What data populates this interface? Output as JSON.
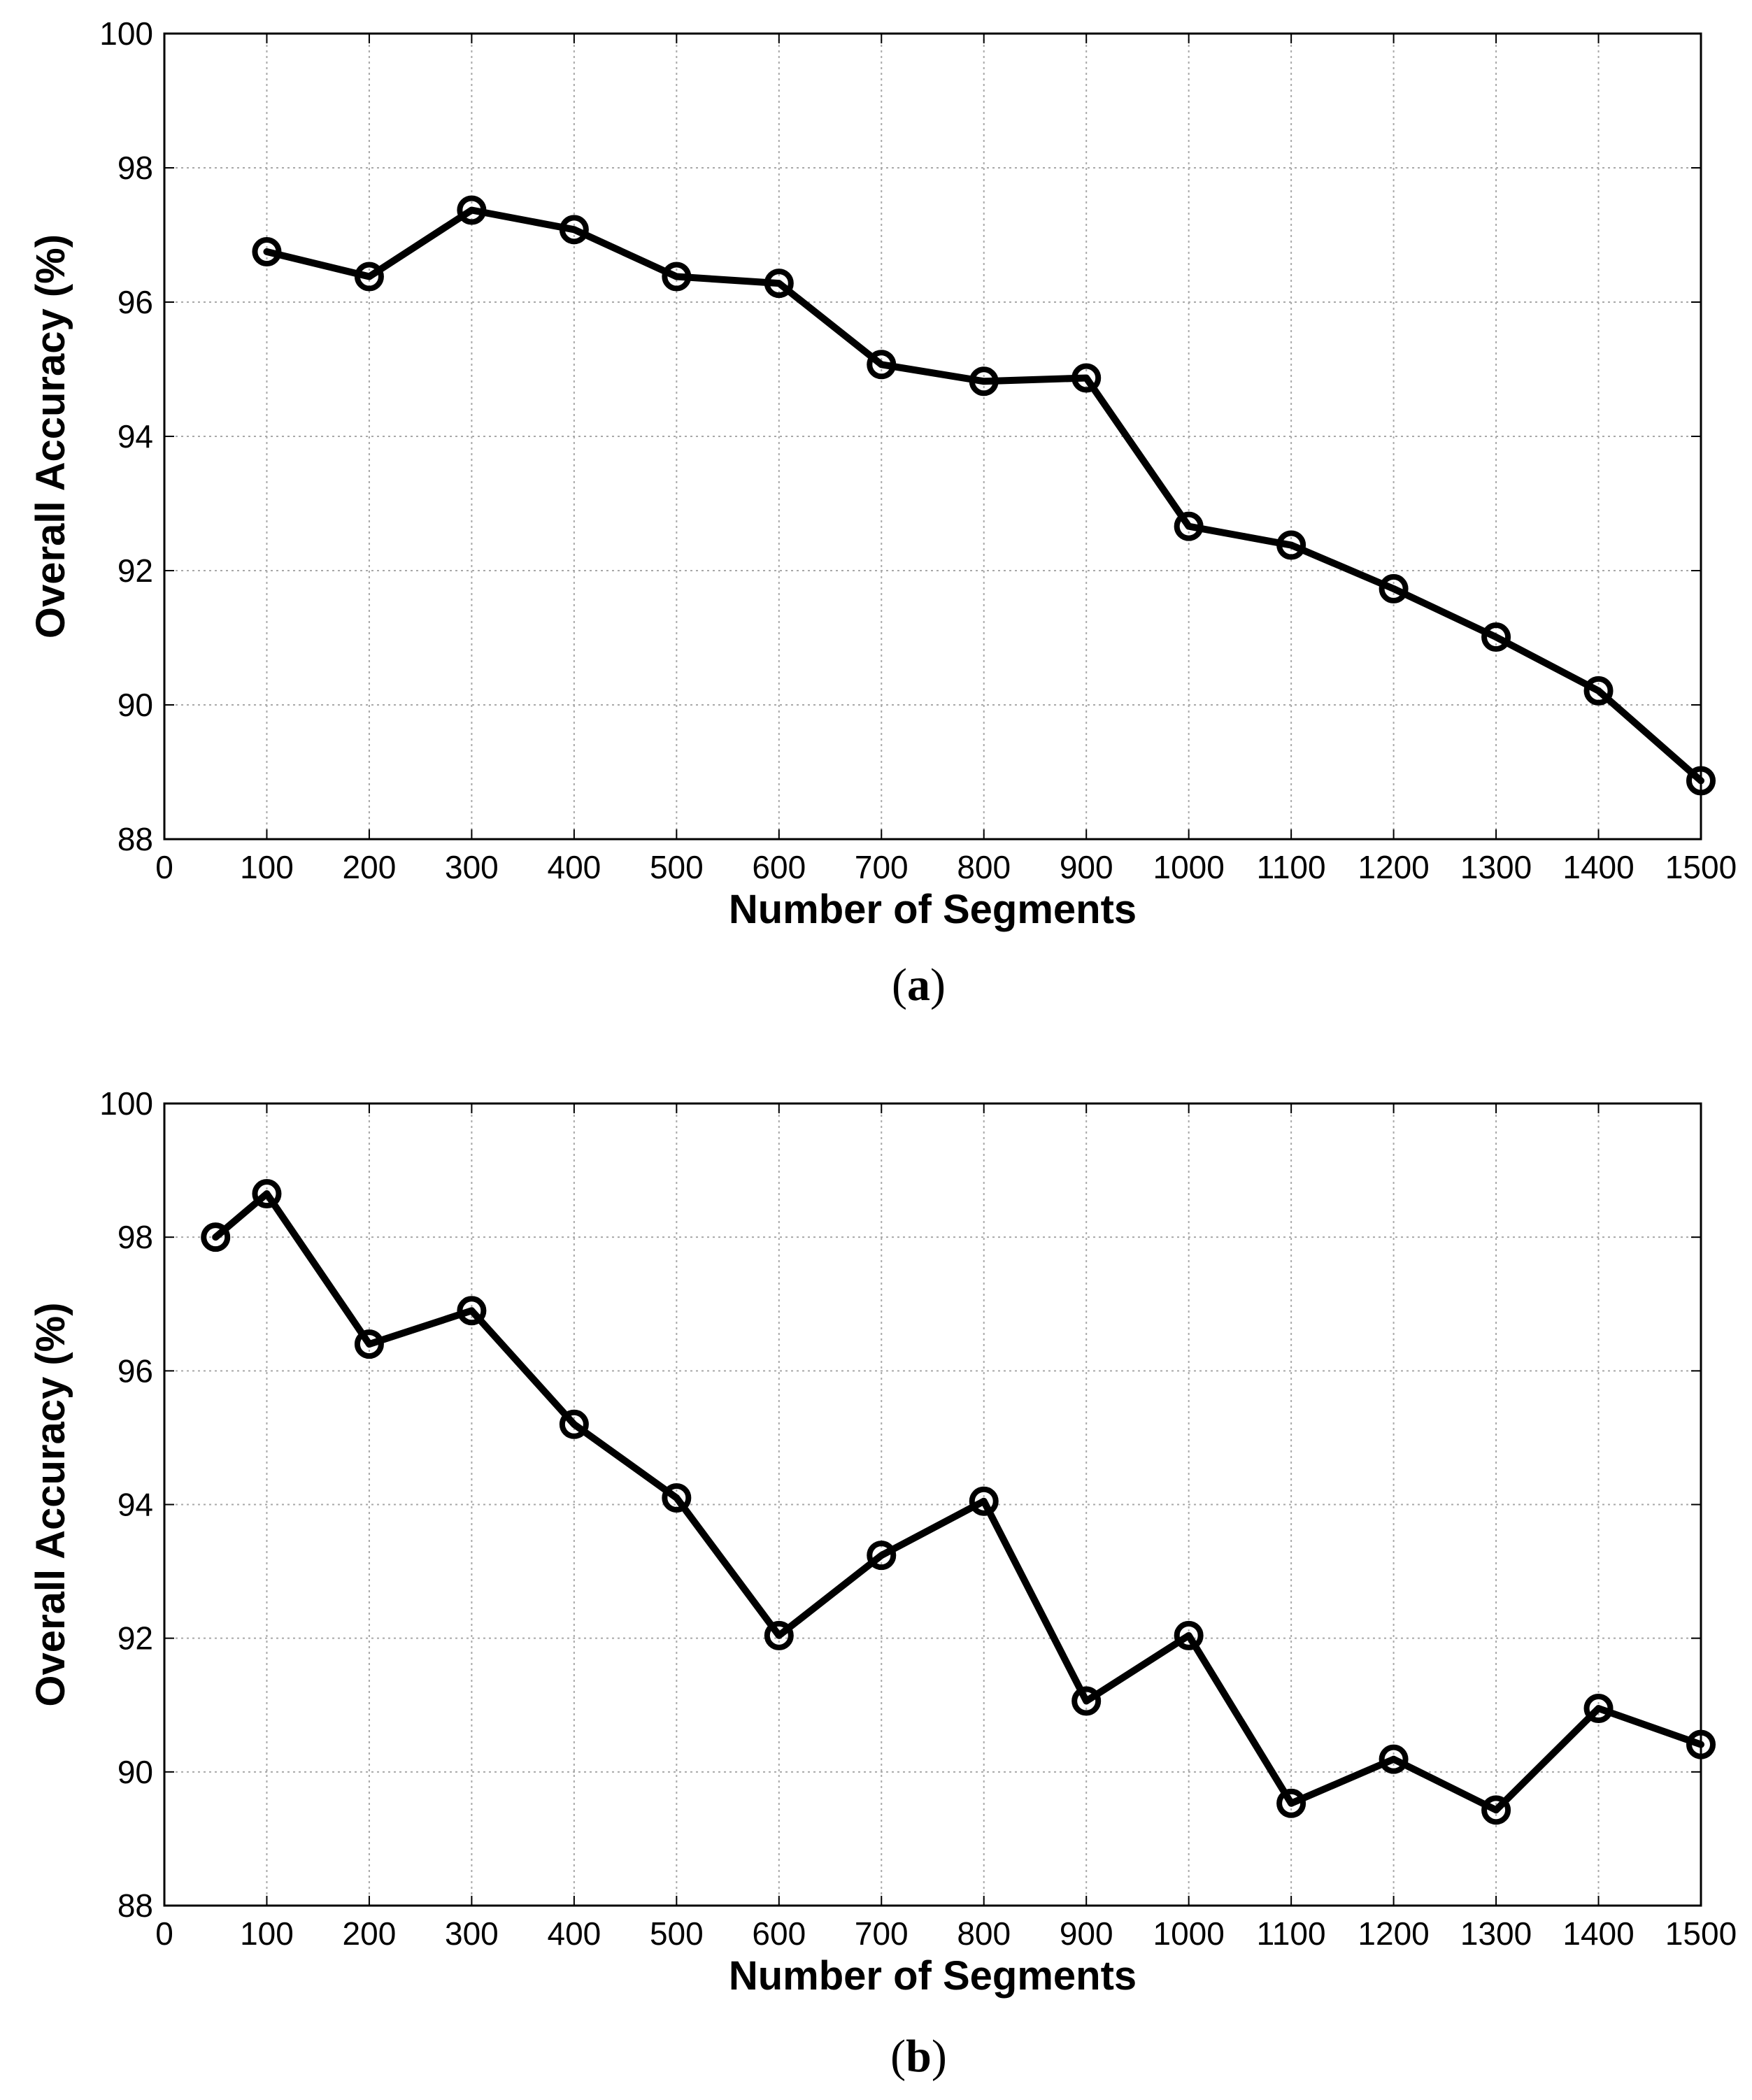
{
  "chart_data": [
    {
      "type": "line",
      "caption_letter": "a",
      "xlabel": "Number of Segments",
      "ylabel": "Overall Accuracy (%)",
      "xlim": [
        0,
        1500
      ],
      "ylim": [
        88,
        100
      ],
      "xticks": [
        0,
        100,
        200,
        300,
        400,
        500,
        600,
        700,
        800,
        900,
        1000,
        1100,
        1200,
        1300,
        1400,
        1500
      ],
      "yticks": [
        88,
        90,
        92,
        94,
        96,
        98,
        100
      ],
      "grid": true,
      "series": [
        {
          "name": "Overall Accuracy",
          "x": [
            100,
            200,
            300,
            400,
            500,
            600,
            700,
            800,
            900,
            1000,
            1100,
            1200,
            1300,
            1400,
            1500
          ],
          "values": [
            96.75,
            96.38,
            97.37,
            97.08,
            96.38,
            96.28,
            95.07,
            94.82,
            94.87,
            92.66,
            92.38,
            91.73,
            91.01,
            90.21,
            88.87
          ]
        }
      ]
    },
    {
      "type": "line",
      "caption_letter": "b",
      "xlabel": "Number of Segments",
      "ylabel": "Overall Accuracy (%)",
      "xlim": [
        0,
        1500
      ],
      "ylim": [
        88,
        100
      ],
      "xticks": [
        0,
        100,
        200,
        300,
        400,
        500,
        600,
        700,
        800,
        900,
        1000,
        1100,
        1200,
        1300,
        1400,
        1500
      ],
      "yticks": [
        88,
        90,
        92,
        94,
        96,
        98,
        100
      ],
      "grid": true,
      "series": [
        {
          "name": "Overall Accuracy",
          "x": [
            50,
            100,
            200,
            300,
            400,
            500,
            600,
            700,
            800,
            900,
            1000,
            1100,
            1200,
            1300,
            1400,
            1500
          ],
          "values": [
            98.0,
            98.65,
            96.4,
            96.9,
            95.2,
            94.1,
            92.04,
            93.24,
            94.05,
            91.06,
            92.04,
            89.53,
            90.19,
            89.43,
            90.95,
            90.41
          ]
        }
      ]
    }
  ]
}
